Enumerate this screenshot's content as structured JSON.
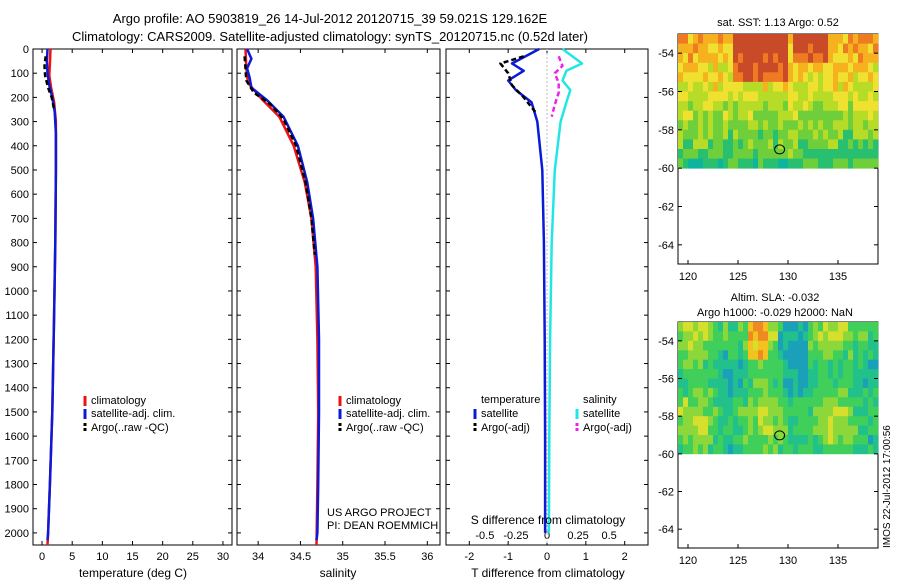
{
  "header": {
    "title_line1": "Argo profile: AO 5903819_26 14-Jul-2012 20120715_39 59.021S 129.162E",
    "title_line2": "Climatology: CARS2009. Satellite-adjusted climatology: synTS_20120715.nc (0.52d later)"
  },
  "colors": {
    "climatology": "#ee1111",
    "satellite": "#0a1ad8",
    "argo": "#000000",
    "sat_salinity": "#22e6e6",
    "argo_salinity": "#ee22ee"
  },
  "chart_data": [
    {
      "id": "temperature",
      "type": "line",
      "xlabel": "temperature (deg C)",
      "ylabel": "",
      "xlim": [
        -1.5,
        31.5
      ],
      "ylim": [
        2050,
        0
      ],
      "xticks": [
        0,
        5,
        10,
        15,
        20,
        25,
        30
      ],
      "yticks": [
        0,
        100,
        200,
        300,
        400,
        500,
        600,
        700,
        800,
        900,
        1000,
        1100,
        1200,
        1300,
        1400,
        1500,
        1600,
        1700,
        1800,
        1900,
        2000
      ],
      "legend": {
        "position": "lower-center",
        "entries": [
          "climatology",
          "satellite-adj. clim.",
          "Argo(..raw -QC)"
        ]
      },
      "series": [
        {
          "name": "climatology",
          "color": "#ee1111",
          "dash": "",
          "points": [
            [
              1.4,
              0
            ],
            [
              1.3,
              60
            ],
            [
              1.2,
              110
            ],
            [
              1.5,
              160
            ],
            [
              2.0,
              220
            ],
            [
              2.3,
              300
            ],
            [
              2.3,
              500
            ],
            [
              2.2,
              800
            ],
            [
              2.0,
              1100
            ],
            [
              1.7,
              1500
            ],
            [
              1.3,
              1800
            ],
            [
              1.0,
              2000
            ],
            [
              0.9,
              2050
            ]
          ]
        },
        {
          "name": "satellite-adj. clim.",
          "color": "#0a1ad8",
          "dash": "",
          "points": [
            [
              0.9,
              0
            ],
            [
              0.8,
              50
            ],
            [
              0.9,
              100
            ],
            [
              1.2,
              150
            ],
            [
              1.7,
              200
            ],
            [
              2.1,
              260
            ],
            [
              2.3,
              350
            ],
            [
              2.3,
              500
            ],
            [
              2.2,
              800
            ],
            [
              2.0,
              1100
            ],
            [
              1.7,
              1500
            ],
            [
              1.3,
              1800
            ],
            [
              1.0,
              2000
            ],
            [
              0.9,
              2030
            ]
          ]
        },
        {
          "name": "Argo(..raw -QC)",
          "color": "#000000",
          "dash": "5,3",
          "points": [
            [
              0.6,
              30
            ],
            [
              0.4,
              70
            ],
            [
              0.5,
              110
            ],
            [
              1.0,
              160
            ],
            [
              1.6,
              200
            ],
            [
              2.0,
              250
            ]
          ]
        }
      ]
    },
    {
      "id": "salinity",
      "type": "line",
      "xlabel": "salinity",
      "ylabel": "",
      "xlim": [
        33.75,
        36.15
      ],
      "ylim": [
        2050,
        0
      ],
      "xticks": [
        34,
        34.5,
        35,
        35.5,
        36
      ],
      "xticklabels": [
        "34",
        "34.5",
        "35",
        "35.5",
        "36"
      ],
      "legend": {
        "position": "lower-right",
        "entries": [
          "climatology",
          "satellite-adj. clim.",
          "Argo(..raw -QC)"
        ]
      },
      "annotations": [
        "US ARGO PROJECT",
        "PI: DEAN ROEMMICH"
      ],
      "series": [
        {
          "name": "climatology",
          "color": "#ee1111",
          "dash": "",
          "points": [
            [
              33.85,
              0
            ],
            [
              33.86,
              80
            ],
            [
              33.88,
              140
            ],
            [
              34.05,
              210
            ],
            [
              34.25,
              280
            ],
            [
              34.42,
              400
            ],
            [
              34.55,
              550
            ],
            [
              34.63,
              700
            ],
            [
              34.68,
              900
            ],
            [
              34.7,
              1200
            ],
            [
              34.71,
              1500
            ],
            [
              34.7,
              1800
            ],
            [
              34.69,
              2050
            ]
          ]
        },
        {
          "name": "satellite-adj. clim.",
          "color": "#0a1ad8",
          "dash": "",
          "points": [
            [
              33.87,
              0
            ],
            [
              33.92,
              40
            ],
            [
              33.87,
              80
            ],
            [
              33.9,
              120
            ],
            [
              33.92,
              160
            ],
            [
              34.1,
              210
            ],
            [
              34.3,
              280
            ],
            [
              34.47,
              400
            ],
            [
              34.58,
              550
            ],
            [
              34.65,
              700
            ],
            [
              34.7,
              900
            ],
            [
              34.72,
              1200
            ],
            [
              34.72,
              1500
            ],
            [
              34.71,
              1800
            ],
            [
              34.7,
              2000
            ],
            [
              34.69,
              2030
            ]
          ]
        },
        {
          "name": "Argo(..raw -QC)",
          "color": "#000000",
          "dash": "5,3",
          "points": [
            [
              33.84,
              30
            ],
            [
              33.85,
              80
            ],
            [
              33.86,
              130
            ],
            [
              33.95,
              180
            ],
            [
              34.15,
              230
            ],
            [
              34.3,
              290
            ],
            [
              34.45,
              400
            ],
            [
              34.56,
              550
            ],
            [
              34.63,
              700
            ],
            [
              34.67,
              850
            ]
          ]
        }
      ]
    },
    {
      "id": "difference",
      "type": "line",
      "xlabel": "T difference from climatology",
      "x2label": "S difference from climatology",
      "ylabel": "",
      "xlim": [
        -2.6,
        2.6
      ],
      "ylim": [
        2050,
        0
      ],
      "xticks": [
        -2,
        -1,
        0,
        1,
        2
      ],
      "x2ticks": [
        "-0.5",
        "-0.25",
        "0",
        "0.25",
        "0.5"
      ],
      "legend": {
        "position": "lower",
        "entries": [
          "temperature",
          "satellite",
          "Argo(-adj)",
          "salinity",
          "satellite",
          "Argo(-adj)"
        ]
      },
      "series": [
        {
          "name": "satellite",
          "color": "#0a1ad8",
          "dash": "",
          "points": [
            [
              -0.2,
              0
            ],
            [
              -0.9,
              60
            ],
            [
              -0.6,
              90
            ],
            [
              -1.0,
              130
            ],
            [
              -0.8,
              170
            ],
            [
              -0.4,
              220
            ],
            [
              -0.25,
              300
            ],
            [
              -0.12,
              500
            ],
            [
              -0.08,
              800
            ],
            [
              -0.06,
              1200
            ],
            [
              -0.05,
              1600
            ],
            [
              -0.05,
              2000
            ]
          ]
        },
        {
          "name": "Argo(-adj)",
          "color": "#000000",
          "dash": "5,3",
          "points": [
            [
              -0.6,
              30
            ],
            [
              -1.2,
              60
            ],
            [
              -1.0,
              100
            ],
            [
              -0.9,
              150
            ],
            [
              -0.6,
              200
            ],
            [
              -0.3,
              260
            ]
          ]
        },
        {
          "name": "satellite",
          "color": "#22e6e6",
          "dash": "",
          "points": [
            [
              0.4,
              0
            ],
            [
              0.9,
              60
            ],
            [
              0.5,
              90
            ],
            [
              0.4,
              130
            ],
            [
              0.6,
              170
            ],
            [
              0.5,
              220
            ],
            [
              0.35,
              300
            ],
            [
              0.2,
              500
            ],
            [
              0.12,
              800
            ],
            [
              0.08,
              1200
            ],
            [
              0.06,
              1600
            ],
            [
              0.05,
              2000
            ]
          ]
        },
        {
          "name": "Argo(-adj)",
          "color": "#ee22ee",
          "dash": "5,3",
          "points": [
            [
              0.3,
              30
            ],
            [
              0.4,
              70
            ],
            [
              0.2,
              100
            ],
            [
              0.3,
              140
            ],
            [
              0.3,
              180
            ],
            [
              0.2,
              230
            ],
            [
              0.12,
              280
            ]
          ]
        }
      ]
    },
    {
      "id": "sst-map",
      "type": "heatmap",
      "title": "sat. SST: 1.13 Argo: 0.52",
      "xlim": [
        119,
        139
      ],
      "ylim": [
        -65,
        -53
      ],
      "xticks": [
        120,
        125,
        130,
        135
      ],
      "yticks": [
        -54,
        -56,
        -58,
        -60,
        -62,
        -64
      ],
      "data_extent_lat": [
        -60,
        -53
      ],
      "marker": {
        "lon": 129.162,
        "lat": -59.021
      }
    },
    {
      "id": "sla-map",
      "type": "heatmap",
      "title": "Altim. SLA: -0.032",
      "subtitle": "Argo h1000: -0.029 h2000: NaN",
      "xlim": [
        119,
        139
      ],
      "ylim": [
        -65,
        -53
      ],
      "xticks": [
        120,
        125,
        130,
        135
      ],
      "yticks": [
        -54,
        -56,
        -58,
        -60,
        -62,
        -64
      ],
      "data_extent_lat": [
        -60,
        -53
      ],
      "marker": {
        "lon": 129.162,
        "lat": -59.021
      }
    }
  ],
  "footer": {
    "stamp": "IMOS 22-Jul-2012 17:00:56"
  }
}
